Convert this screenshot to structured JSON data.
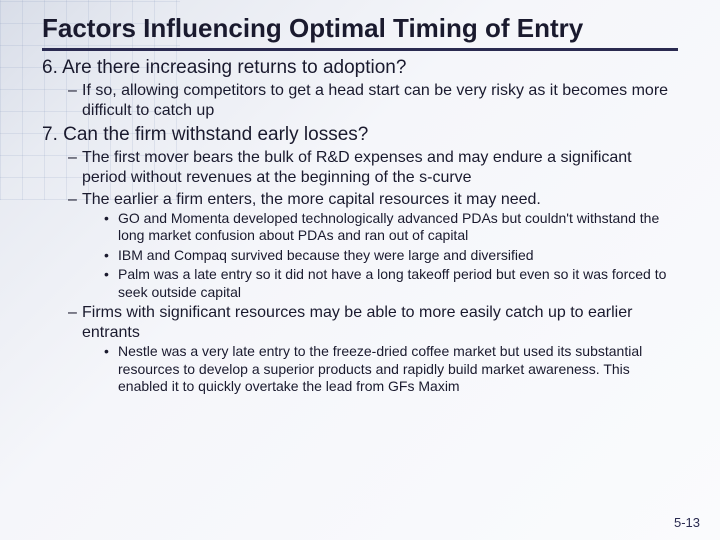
{
  "title": "Factors Influencing Optimal Timing of Entry",
  "title_fontsize": 26,
  "items": [
    {
      "number": "6.",
      "heading": "Are there increasing returns to adoption?",
      "heading_fontsize": 19,
      "dashes": [
        {
          "text": "If so, allowing competitors to get a head start can be very risky as it becomes more difficult to catch up",
          "fontsize": 16
        }
      ]
    },
    {
      "number": "7.",
      "heading": "Can the firm withstand early losses?",
      "heading_fontsize": 19,
      "dashes": [
        {
          "text": "The first mover bears the bulk of R&D expenses and may endure a significant period without revenues at the beginning of the s-curve",
          "fontsize": 16
        },
        {
          "text": "The earlier a firm enters, the more capital resources it may need.",
          "fontsize": 16,
          "bullets": [
            {
              "text": "GO and Momenta developed technologically advanced PDAs but couldn't withstand the long market confusion about PDAs and ran out of capital",
              "fontsize": 14
            },
            {
              "text": "IBM and Compaq survived because they were large and diversified",
              "fontsize": 14
            },
            {
              "text": "Palm was a late entry so it did not have a long takeoff period but even so it was forced to seek outside capital",
              "fontsize": 14
            }
          ]
        },
        {
          "text": "Firms with significant resources may be able to more easily catch up to earlier entrants",
          "fontsize": 16,
          "bullets": [
            {
              "text": "Nestle was a very late entry to the freeze-dried coffee market but used its substantial resources to develop a superior products and rapidly build market awareness. This enabled it to quickly overtake the lead from GFs Maxim",
              "fontsize": 14
            }
          ]
        }
      ]
    }
  ],
  "page_number": "5-13",
  "page_number_fontsize": 13,
  "colors": {
    "text": "#1a1a2e",
    "underline": "#2a2a50",
    "bg_light": "#fafbfd",
    "bg_dark": "#d8dde8"
  }
}
